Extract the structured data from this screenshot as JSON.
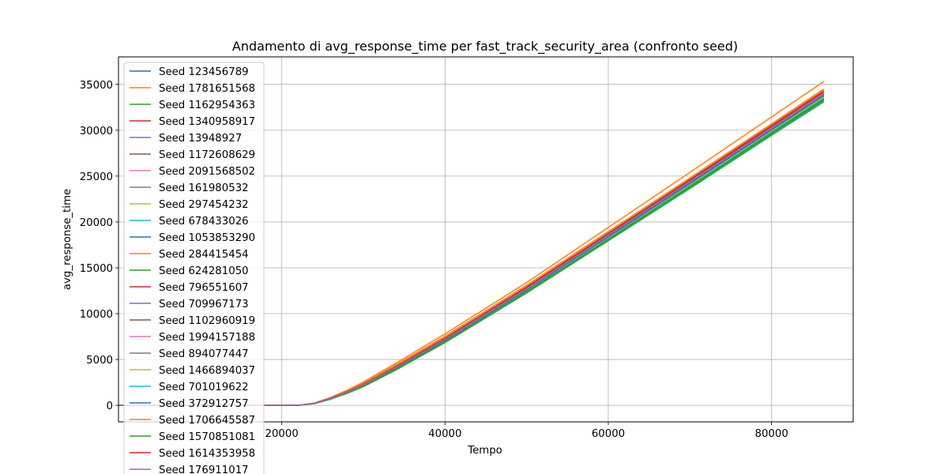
{
  "chart_data": {
    "type": "line",
    "title": "Andamento di avg_response_time per fast_track_security_area (confronto seed)",
    "xlabel": "Tempo",
    "ylabel": "avg_response_time",
    "xlim": [
      0,
      90000
    ],
    "ylim": [
      -1800,
      38000
    ],
    "xticks": [
      20000,
      40000,
      60000,
      80000
    ],
    "xtick_labels": [
      "20000",
      "40000",
      "60000",
      "80000"
    ],
    "yticks": [
      0,
      5000,
      10000,
      15000,
      20000,
      25000,
      30000,
      35000
    ],
    "ytick_labels": [
      "0",
      "5000",
      "10000",
      "15000",
      "20000",
      "25000",
      "30000",
      "35000"
    ],
    "grid": true,
    "legend_position": "upper-left",
    "x": [
      0,
      22000,
      24000,
      26000,
      28000,
      30000,
      34000,
      40000,
      50000,
      60000,
      70000,
      80000,
      86400
    ],
    "series": [
      {
        "name": "Seed 123456789",
        "color": "#1f77b4",
        "values": [
          0,
          0,
          200,
          700,
          1350,
          2100,
          3950,
          6950,
          12400,
          18100,
          23850,
          29650,
          33350
        ]
      },
      {
        "name": "Seed 1781651568",
        "color": "#ff7f0e",
        "values": [
          0,
          0,
          260,
          880,
          1650,
          2550,
          4600,
          7800,
          13400,
          19400,
          25400,
          31450,
          35300
        ]
      },
      {
        "name": "Seed 1162954363",
        "color": "#2ca02c",
        "values": [
          0,
          0,
          190,
          680,
          1300,
          2040,
          3860,
          6840,
          12250,
          17950,
          23650,
          29450,
          33100
        ]
      },
      {
        "name": "Seed 1340958917",
        "color": "#d62728",
        "values": [
          0,
          0,
          220,
          760,
          1450,
          2260,
          4170,
          7240,
          12800,
          18600,
          24450,
          30300,
          34050
        ]
      },
      {
        "name": "Seed 13948927",
        "color": "#9467bd",
        "values": [
          0,
          0,
          210,
          740,
          1420,
          2220,
          4100,
          7140,
          12650,
          18450,
          24300,
          30150,
          33900
        ]
      },
      {
        "name": "Seed 1172608629",
        "color": "#8c564b",
        "values": [
          0,
          0,
          200,
          710,
          1370,
          2140,
          4000,
          7020,
          12500,
          18250,
          24050,
          29900,
          33650
        ]
      },
      {
        "name": "Seed 2091568502",
        "color": "#e377c2",
        "values": [
          0,
          0,
          205,
          720,
          1390,
          2170,
          4040,
          7060,
          12550,
          18300,
          24100,
          29950,
          33700
        ]
      },
      {
        "name": "Seed 161980532",
        "color": "#7f7f7f",
        "values": [
          0,
          0,
          195,
          700,
          1340,
          2100,
          3950,
          6950,
          12400,
          18100,
          23850,
          29700,
          33400
        ]
      },
      {
        "name": "Seed 297454232",
        "color": "#bcbd22",
        "values": [
          0,
          0,
          200,
          705,
          1350,
          2110,
          3960,
          6960,
          12420,
          18150,
          23900,
          29750,
          33450
        ]
      },
      {
        "name": "Seed 678433026",
        "color": "#17becf",
        "values": [
          0,
          0,
          190,
          690,
          1320,
          2080,
          3920,
          6900,
          12330,
          18020,
          23750,
          29550,
          33200
        ]
      },
      {
        "name": "Seed 1053853290",
        "color": "#1f77b4",
        "values": [
          0,
          0,
          215,
          745,
          1430,
          2230,
          4120,
          7160,
          12680,
          18500,
          24350,
          30200,
          33950
        ]
      },
      {
        "name": "Seed 284415454",
        "color": "#ff7f0e",
        "values": [
          0,
          0,
          240,
          820,
          1560,
          2420,
          4420,
          7550,
          13100,
          18950,
          24800,
          30700,
          34500
        ]
      },
      {
        "name": "Seed 624281050",
        "color": "#2ca02c",
        "values": [
          0,
          0,
          195,
          695,
          1330,
          2090,
          3930,
          6920,
          12350,
          18050,
          23780,
          29600,
          33250
        ]
      },
      {
        "name": "Seed 796551607",
        "color": "#d62728",
        "values": [
          0,
          0,
          225,
          770,
          1470,
          2280,
          4200,
          7280,
          12850,
          18700,
          24550,
          30450,
          34200
        ]
      },
      {
        "name": "Seed 709967173",
        "color": "#9467bd",
        "values": [
          0,
          0,
          210,
          735,
          1410,
          2200,
          4080,
          7110,
          12620,
          18400,
          24250,
          30100,
          33850
        ]
      },
      {
        "name": "Seed 1102960919",
        "color": "#8c564b",
        "values": [
          0,
          0,
          205,
          725,
          1400,
          2180,
          4050,
          7080,
          12580,
          18350,
          24150,
          30000,
          33750
        ]
      },
      {
        "name": "Seed 1994157188",
        "color": "#e377c2",
        "values": [
          0,
          0,
          215,
          750,
          1440,
          2240,
          4140,
          7190,
          12720,
          18550,
          24400,
          30250,
          34000
        ]
      },
      {
        "name": "Seed 894077447",
        "color": "#7f7f7f",
        "values": [
          0,
          0,
          200,
          710,
          1360,
          2130,
          3980,
          6990,
          12460,
          18200,
          23980,
          29820,
          33550
        ]
      },
      {
        "name": "Seed 1466894037",
        "color": "#bcbd22",
        "values": [
          0,
          0,
          205,
          715,
          1375,
          2150,
          4010,
          7030,
          12510,
          18270,
          24060,
          29900,
          33650
        ]
      },
      {
        "name": "Seed 701019622",
        "color": "#17becf",
        "values": [
          0,
          0,
          200,
          705,
          1355,
          2120,
          3970,
          6980,
          12440,
          18180,
          23950,
          29800,
          33500
        ]
      },
      {
        "name": "Seed 372912757",
        "color": "#1f77b4",
        "values": [
          0,
          0,
          210,
          730,
          1400,
          2190,
          4060,
          7090,
          12600,
          18380,
          24200,
          30050,
          33800
        ]
      },
      {
        "name": "Seed 1706645587",
        "color": "#ff7f0e",
        "values": [
          0,
          0,
          230,
          790,
          1500,
          2330,
          4280,
          7380,
          12950,
          18800,
          24650,
          30550,
          34350
        ]
      },
      {
        "name": "Seed 1570851081",
        "color": "#2ca02c",
        "values": [
          0,
          0,
          195,
          700,
          1345,
          2110,
          3950,
          6950,
          12400,
          18100,
          23850,
          29700,
          33400
        ]
      },
      {
        "name": "Seed 1614353958",
        "color": "#d62728",
        "values": [
          0,
          0,
          225,
          775,
          1480,
          2300,
          4230,
          7320,
          12900,
          18750,
          24600,
          30500,
          34250
        ]
      },
      {
        "name": "Seed 176911017",
        "color": "#9467bd",
        "values": [
          0,
          0,
          215,
          745,
          1435,
          2235,
          4130,
          7170,
          12700,
          18520,
          24380,
          30230,
          34000
        ]
      }
    ]
  }
}
